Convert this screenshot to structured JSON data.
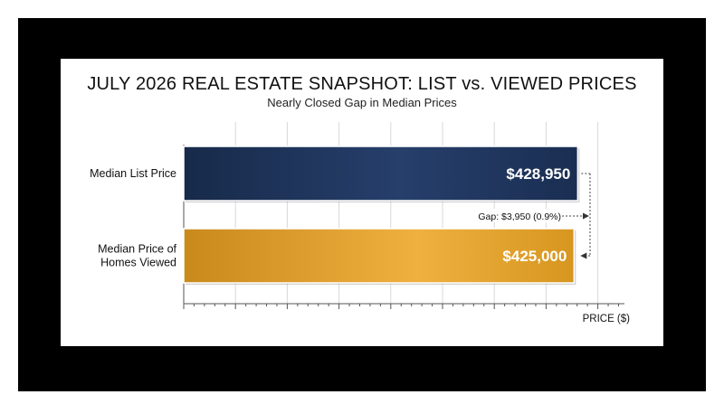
{
  "chart_data": {
    "type": "bar",
    "orientation": "horizontal",
    "title": "JULY 2026 REAL ESTATE SNAPSHOT: LIST vs. VIEWED PRICES",
    "subtitle": "Nearly Closed Gap in Median Prices",
    "xlabel": "PRICE ($)",
    "categories": [
      "Median List Price",
      "Median Price of Homes Viewed"
    ],
    "category_lines": [
      [
        "Median List Price"
      ],
      [
        "Median Price of",
        "Homes Viewed"
      ]
    ],
    "values": [
      428950,
      425000
    ],
    "data_labels": [
      "$428,950",
      "$425,000"
    ],
    "colors": [
      "#1e3358",
      "#e0a12e"
    ],
    "annotation": "Gap: $3,950 (0.9%)",
    "xlim": [
      0,
      470000
    ],
    "grid": true,
    "legend": "none"
  }
}
